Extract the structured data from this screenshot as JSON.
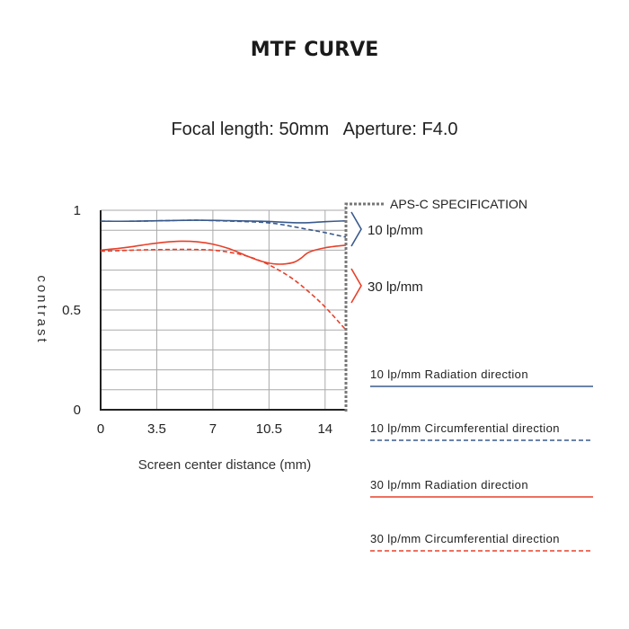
{
  "chart_data": {
    "type": "line",
    "title": "MTF CURVE",
    "subtitle": "Focal length: 50mm   Aperture: F4.0",
    "xlabel": "Screen center distance (mm)",
    "ylabel": "contrast",
    "xlim": [
      0,
      15.3
    ],
    "ylim": [
      0,
      1
    ],
    "x_ticks": [
      0,
      3.5,
      7,
      10.5,
      14
    ],
    "x_tick_labels": [
      "0",
      "3.5",
      "7",
      "10.5",
      "14"
    ],
    "y_ticks": [
      0,
      0.5,
      1
    ],
    "y_tick_labels": [
      "0",
      "0.5",
      "1"
    ],
    "grid": true,
    "legend_position": "right",
    "annotations": {
      "spec_line_x": 15.3,
      "spec_label": "APS-C SPECIFICATION",
      "group_10_label": "10 lp/mm",
      "group_30_label": "30 lp/mm"
    },
    "series": [
      {
        "name": "10 lp/mm Radiation direction",
        "color": "#3a5a8c",
        "dash": false,
        "x": [
          0,
          2,
          4,
          6,
          8,
          10,
          12,
          13,
          14,
          15.3
        ],
        "y": [
          0.945,
          0.945,
          0.948,
          0.95,
          0.948,
          0.945,
          0.938,
          0.938,
          0.943,
          0.947
        ]
      },
      {
        "name": "10 lp/mm Circumferential direction",
        "color": "#3a5a8c",
        "dash": true,
        "x": [
          0,
          2,
          4,
          6,
          8,
          10,
          11,
          12,
          13,
          14,
          15.3
        ],
        "y": [
          0.945,
          0.945,
          0.948,
          0.95,
          0.946,
          0.94,
          0.932,
          0.918,
          0.903,
          0.888,
          0.865
        ]
      },
      {
        "name": "30 lp/mm Radiation direction",
        "color": "#e8402a",
        "dash": false,
        "x": [
          0,
          1,
          2,
          3,
          4,
          5,
          6,
          7,
          8,
          9,
          10,
          11,
          12,
          12.5,
          13,
          14,
          15.3
        ],
        "y": [
          0.8,
          0.808,
          0.818,
          0.83,
          0.84,
          0.845,
          0.842,
          0.83,
          0.808,
          0.775,
          0.745,
          0.73,
          0.738,
          0.76,
          0.79,
          0.812,
          0.825
        ]
      },
      {
        "name": "30 lp/mm Circumferential direction",
        "color": "#e8402a",
        "dash": true,
        "x": [
          0,
          1,
          2,
          3,
          4,
          5,
          6,
          7,
          8,
          9,
          10,
          11,
          12,
          13,
          14,
          15.3
        ],
        "y": [
          0.795,
          0.797,
          0.8,
          0.802,
          0.803,
          0.804,
          0.803,
          0.8,
          0.79,
          0.773,
          0.745,
          0.705,
          0.655,
          0.59,
          0.515,
          0.4
        ]
      }
    ]
  }
}
